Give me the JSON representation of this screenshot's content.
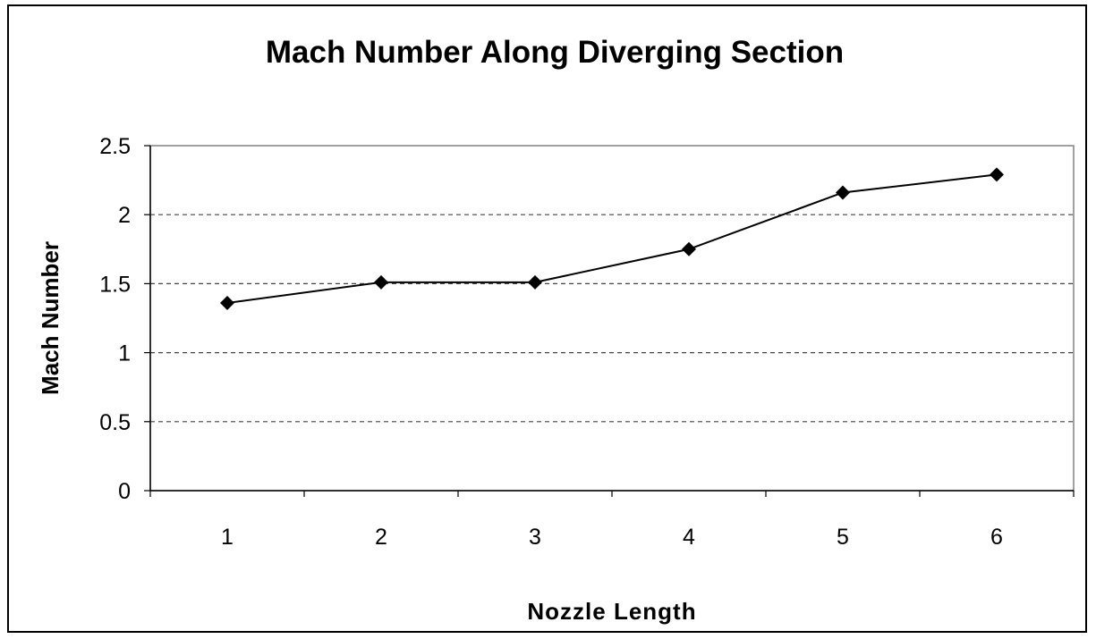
{
  "chart_data": {
    "type": "line",
    "title": "Mach Number Along Diverging Section",
    "xlabel": "Nozzle Length",
    "ylabel": "Mach Number",
    "categories": [
      "1",
      "2",
      "3",
      "4",
      "5",
      "6"
    ],
    "series": [
      {
        "values": [
          1.36,
          1.51,
          1.51,
          1.75,
          2.16,
          2.29
        ]
      }
    ],
    "ylim": [
      0,
      2.5
    ],
    "yticks": [
      "0",
      "0.5",
      "1",
      "1.5",
      "2",
      "2.5"
    ],
    "ytick_values": [
      0,
      0.5,
      1,
      1.5,
      2,
      2.5
    ],
    "grid": "horizontal-dashed",
    "legend": "none",
    "marker": "diamond",
    "line_color": "#000000"
  }
}
